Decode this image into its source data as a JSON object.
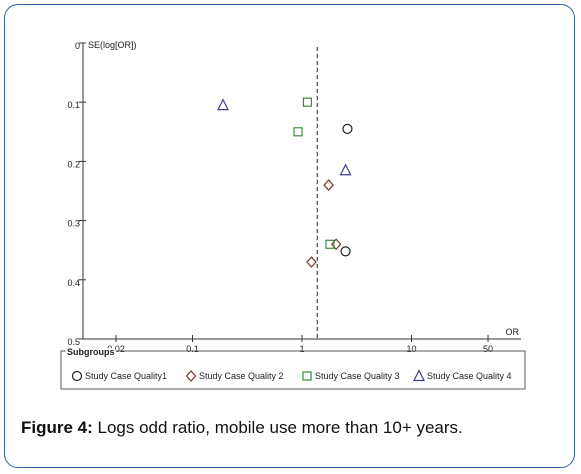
{
  "chart_data": {
    "type": "scatter",
    "title": "",
    "xlabel": "OR",
    "ylabel": "SE(log[OR])",
    "x_scale": "log",
    "xlim": [
      0.01,
      100
    ],
    "ylim": [
      0,
      0.5
    ],
    "y_inverted": true,
    "x_ticks": [
      "0.02",
      "0.1",
      "1",
      "10",
      "50"
    ],
    "x_tick_values": [
      0.02,
      0.1,
      1,
      10,
      50
    ],
    "y_ticks": [
      "0",
      "0.1",
      "0.2",
      "0.3",
      "0.4",
      "0.5"
    ],
    "y_tick_values": [
      0,
      0.1,
      0.2,
      0.3,
      0.4,
      0.5
    ],
    "reference_line": {
      "x": 1.38,
      "style": "dashed"
    },
    "grid": false,
    "legend_title": "Subgroups",
    "legend_position": "bottom",
    "series": [
      {
        "name": "Study Case Quality1",
        "marker": "circle",
        "color": "#222222",
        "points": [
          {
            "x": 2.6,
            "y": 0.145
          },
          {
            "x": 2.5,
            "y": 0.352
          }
        ]
      },
      {
        "name": "Study Case Quality 2",
        "marker": "diamond",
        "color": "#7a3b2e",
        "points": [
          {
            "x": 1.75,
            "y": 0.24
          },
          {
            "x": 2.05,
            "y": 0.34
          },
          {
            "x": 1.22,
            "y": 0.37
          }
        ]
      },
      {
        "name": "Study Case Quality 3",
        "marker": "square",
        "color": "#3a8a3a",
        "points": [
          {
            "x": 1.12,
            "y": 0.1
          },
          {
            "x": 0.92,
            "y": 0.15
          },
          {
            "x": 1.8,
            "y": 0.34
          }
        ]
      },
      {
        "name": "Study Case Quality 4",
        "marker": "triangle",
        "color": "#3b3e8a",
        "points": [
          {
            "x": 0.19,
            "y": 0.105
          },
          {
            "x": 2.5,
            "y": 0.215
          }
        ]
      }
    ]
  },
  "caption": {
    "label": "Figure 4:",
    "text": " Logs odd ratio, mobile use more than 10+ years."
  }
}
